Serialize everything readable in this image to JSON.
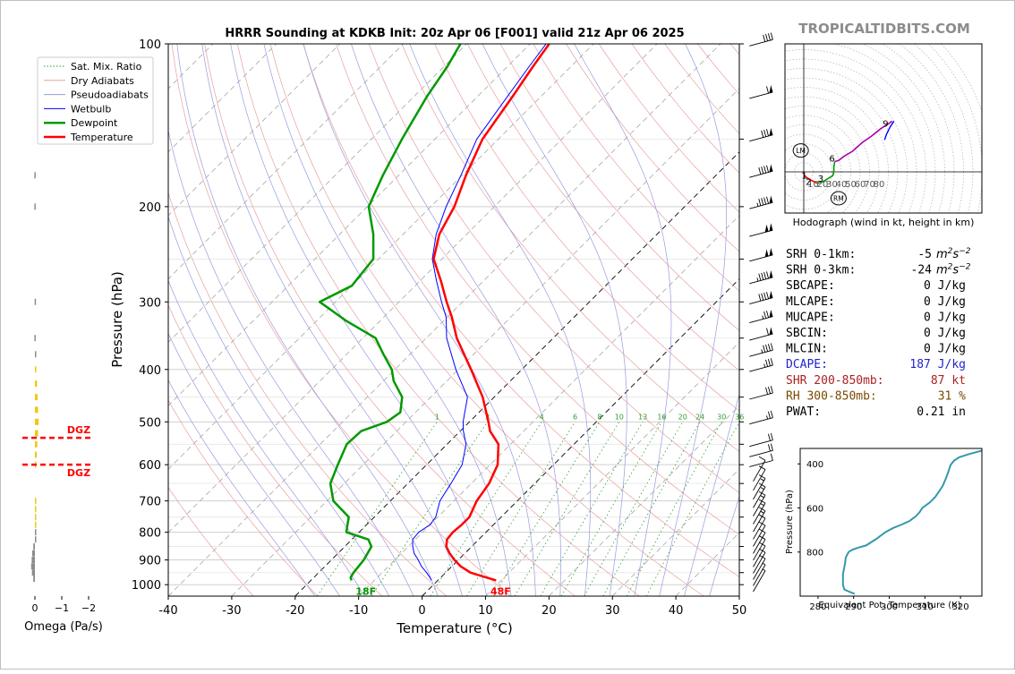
{
  "title": "HRRR Sounding at KDKB Init: 20z Apr 06 [F001] valid 21z Apr 06 2025",
  "watermark": "TROPICALTIDBITS.COM",
  "colors": {
    "temperature": "#ff0000",
    "dewpoint": "#009900",
    "wetbulb": "#0000ff",
    "dry_adiabat": "#e8a0a0",
    "pseudo_adiabat": "#9a9ae0",
    "mixing_ratio": "#2e9e2e",
    "isotherm": "#8c8c8c",
    "dgz": "#ff0000",
    "omega_pos": "#f5c518",
    "omega_neg": "#8c8c8c",
    "theta_e": "#3399aa",
    "dcape": "#2222cc",
    "shear": "#aa2222",
    "rh": "#7a4a00"
  },
  "legend": [
    {
      "label": "Sat. Mix. Ratio",
      "style": "dotted",
      "color": "#2e9e2e"
    },
    {
      "label": "Dry Adiabats",
      "style": "solid-thin",
      "color": "#e8a0a0"
    },
    {
      "label": "Pseudoadiabats",
      "style": "solid-thin",
      "color": "#9a9ae0"
    },
    {
      "label": "Wetbulb",
      "style": "solid-thin",
      "color": "#0000ff"
    },
    {
      "label": "Dewpoint",
      "style": "solid-thick",
      "color": "#009900"
    },
    {
      "label": "Temperature",
      "style": "solid-thick",
      "color": "#ff0000"
    }
  ],
  "omega": {
    "xlabel": "Omega (Pa/s)",
    "ticks": [
      "0",
      "−1",
      "−2"
    ],
    "dgz_label": "DGZ",
    "dgz_pressures": [
      535,
      600
    ]
  },
  "surface_labels": {
    "dewpoint": "18F",
    "temperature": "48F"
  },
  "mixing_ratio_labels": [
    "1",
    "2",
    "4",
    "6",
    "8",
    "10",
    "13",
    "16",
    "20",
    "24",
    "30",
    "36"
  ],
  "hodograph": {
    "caption": "Hodograph (wind in kt, height in km)",
    "ring_labels": [
      "10",
      "20",
      "30",
      "40",
      "50",
      "60",
      "70",
      "80"
    ],
    "height_labels": [
      "1",
      "2",
      "3",
      "6",
      "9"
    ],
    "lm_label": "LM",
    "rm_label": "RM"
  },
  "indices": [
    {
      "label": "SRH 0-1km:",
      "value": "-5",
      "unit": "m2s-2",
      "color": "#000000"
    },
    {
      "label": "SRH 0-3km:",
      "value": "-24",
      "unit": "m2s-2",
      "color": "#000000"
    },
    {
      "label": "SBCAPE:",
      "value": "0 J/kg",
      "color": "#000000"
    },
    {
      "label": "MLCAPE:",
      "value": "0 J/kg",
      "color": "#000000"
    },
    {
      "label": "MUCAPE:",
      "value": "0 J/kg",
      "color": "#000000"
    },
    {
      "label": "SBCIN:",
      "value": "0 J/kg",
      "color": "#000000"
    },
    {
      "label": "MLCIN:",
      "value": "0 J/kg",
      "color": "#000000"
    },
    {
      "label": "DCAPE:",
      "value": "187 J/kg",
      "color": "#2222cc"
    },
    {
      "label": "SHR 200-850mb:",
      "value": "87 kt",
      "color": "#aa2222"
    },
    {
      "label": "RH 300-850mb:",
      "value": "31 %",
      "color": "#7a4a00"
    },
    {
      "label": "PWAT:",
      "value": "0.21 in",
      "color": "#000000"
    }
  ],
  "theta_e_panel": {
    "xlabel": "Equivalent Pot. Temperature (K)",
    "ylabel": "Pressure (hPa)",
    "xlim": [
      275,
      326
    ],
    "plim": [
      1000,
      330
    ],
    "xticks": [
      280,
      290,
      300,
      310,
      320
    ],
    "yticks": [
      400,
      600,
      800
    ]
  },
  "chart_data": [
    {
      "type": "line",
      "name": "skew-t",
      "title": "HRRR Sounding at KDKB Init: 20z Apr 06 [F001] valid 21z Apr 06 2025",
      "xlabel": "Temperature (°C)",
      "ylabel": "Pressure (hPa)",
      "xlim": [
        -40,
        50
      ],
      "ylim": [
        1050,
        100
      ],
      "yscale": "log",
      "xticks": [
        -40,
        -30,
        -20,
        -10,
        0,
        10,
        20,
        30,
        40,
        50
      ],
      "yticks": [
        1000,
        900,
        800,
        700,
        600,
        500,
        400,
        300,
        200,
        100
      ],
      "grid": true,
      "legend_position": "top-left",
      "series": [
        {
          "name": "Temperature",
          "points": [
            [
              982,
              9.2
            ],
            [
              970,
              7.2
            ],
            [
              950,
              3.9
            ],
            [
              925,
              1.4
            ],
            [
              900,
              -0.6
            ],
            [
              875,
              -2.4
            ],
            [
              850,
              -4.0
            ],
            [
              825,
              -5.0
            ],
            [
              800,
              -5.2
            ],
            [
              775,
              -5.0
            ],
            [
              750,
              -5.0
            ],
            [
              700,
              -6.4
            ],
            [
              650,
              -7.2
            ],
            [
              600,
              -8.8
            ],
            [
              550,
              -11.9
            ],
            [
              520,
              -15.3
            ],
            [
              500,
              -17.0
            ],
            [
              450,
              -21.8
            ],
            [
              400,
              -28.0
            ],
            [
              350,
              -35.2
            ],
            [
              320,
              -39.3
            ],
            [
              300,
              -42.5
            ],
            [
              275,
              -46.6
            ],
            [
              250,
              -51.3
            ],
            [
              225,
              -54.3
            ],
            [
              200,
              -56.3
            ],
            [
              175,
              -59.4
            ],
            [
              150,
              -62.5
            ],
            [
              125,
              -64.5
            ],
            [
              110,
              -66.0
            ],
            [
              100,
              -67.0
            ]
          ]
        },
        {
          "name": "Dewpoint",
          "points": [
            [
              982,
              -13.6
            ],
            [
              970,
              -14.2
            ],
            [
              950,
              -14.5
            ],
            [
              900,
              -14.9
            ],
            [
              850,
              -15.8
            ],
            [
              825,
              -17.4
            ],
            [
              800,
              -22.0
            ],
            [
              775,
              -23.0
            ],
            [
              750,
              -24.0
            ],
            [
              700,
              -29.0
            ],
            [
              650,
              -32.2
            ],
            [
              600,
              -34.0
            ],
            [
              550,
              -35.8
            ],
            [
              520,
              -35.6
            ],
            [
              500,
              -33.0
            ],
            [
              480,
              -32.4
            ],
            [
              450,
              -34.5
            ],
            [
              420,
              -38.4
            ],
            [
              400,
              -40.5
            ],
            [
              375,
              -44.2
            ],
            [
              350,
              -48.0
            ],
            [
              325,
              -55.4
            ],
            [
              300,
              -62.5
            ],
            [
              280,
              -60.0
            ],
            [
              250,
              -60.8
            ],
            [
              225,
              -64.7
            ],
            [
              200,
              -69.8
            ],
            [
              175,
              -72.5
            ],
            [
              150,
              -75.2
            ],
            [
              125,
              -78.0
            ],
            [
              110,
              -79.5
            ],
            [
              100,
              -81.0
            ]
          ]
        },
        {
          "name": "Wetbulb",
          "points": [
            [
              982,
              -1.0
            ],
            [
              970,
              -1.7
            ],
            [
              950,
              -3.0
            ],
            [
              925,
              -4.8
            ],
            [
              900,
              -6.3
            ],
            [
              875,
              -8.0
            ],
            [
              850,
              -9.3
            ],
            [
              825,
              -10.4
            ],
            [
              800,
              -10.6
            ],
            [
              775,
              -10.0
            ],
            [
              750,
              -10.3
            ],
            [
              700,
              -12.2
            ],
            [
              650,
              -13.2
            ],
            [
              600,
              -14.4
            ],
            [
              550,
              -17.0
            ],
            [
              520,
              -19.5
            ],
            [
              500,
              -21.0
            ],
            [
              450,
              -24.2
            ],
            [
              400,
              -30.4
            ],
            [
              350,
              -36.8
            ],
            [
              320,
              -40.2
            ],
            [
              300,
              -43.3
            ],
            [
              275,
              -47.3
            ],
            [
              250,
              -51.5
            ],
            [
              225,
              -54.8
            ],
            [
              200,
              -57.6
            ],
            [
              175,
              -60.2
            ],
            [
              150,
              -63.4
            ],
            [
              125,
              -65.3
            ],
            [
              110,
              -66.6
            ],
            [
              100,
              -67.5
            ]
          ]
        }
      ],
      "wind_barbs": [
        {
          "p": 1000,
          "speed_kt": 5
        },
        {
          "p": 975,
          "speed_kt": 5
        },
        {
          "p": 950,
          "speed_kt": 10
        },
        {
          "p": 925,
          "speed_kt": 10
        },
        {
          "p": 900,
          "speed_kt": 10
        },
        {
          "p": 875,
          "speed_kt": 10
        },
        {
          "p": 850,
          "speed_kt": 10
        },
        {
          "p": 825,
          "speed_kt": 10
        },
        {
          "p": 800,
          "speed_kt": 10
        },
        {
          "p": 775,
          "speed_kt": 15
        },
        {
          "p": 750,
          "speed_kt": 15
        },
        {
          "p": 725,
          "speed_kt": 15
        },
        {
          "p": 700,
          "speed_kt": 15
        },
        {
          "p": 675,
          "speed_kt": 15
        },
        {
          "p": 650,
          "speed_kt": 10
        },
        {
          "p": 625,
          "speed_kt": 10
        },
        {
          "p": 600,
          "speed_kt": 10
        },
        {
          "p": 575,
          "speed_kt": 20
        },
        {
          "p": 550,
          "speed_kt": 20
        },
        {
          "p": 500,
          "speed_kt": 25
        },
        {
          "p": 450,
          "speed_kt": 30
        },
        {
          "p": 400,
          "speed_kt": 35
        },
        {
          "p": 375,
          "speed_kt": 45
        },
        {
          "p": 350,
          "speed_kt": 60
        },
        {
          "p": 325,
          "speed_kt": 75
        },
        {
          "p": 300,
          "speed_kt": 90
        },
        {
          "p": 275,
          "speed_kt": 95
        },
        {
          "p": 250,
          "speed_kt": 100
        },
        {
          "p": 225,
          "speed_kt": 100
        },
        {
          "p": 200,
          "speed_kt": 95
        },
        {
          "p": 175,
          "speed_kt": 90
        },
        {
          "p": 150,
          "speed_kt": 80
        },
        {
          "p": 125,
          "speed_kt": 60
        },
        {
          "p": 100,
          "speed_kt": 40
        }
      ]
    },
    {
      "type": "bar",
      "name": "omega",
      "xlabel": "Omega (Pa/s)",
      "xlim": [
        0.2,
        -2.2
      ],
      "orientation": "horizontal",
      "points": [
        [
          975,
          0.06
        ],
        [
          950,
          0.11
        ],
        [
          925,
          0.14
        ],
        [
          900,
          0.12
        ],
        [
          875,
          0.1
        ],
        [
          850,
          0.06
        ],
        [
          825,
          0.0
        ],
        [
          800,
          0.0
        ],
        [
          775,
          -0.03
        ],
        [
          750,
          -0.05
        ],
        [
          725,
          -0.04
        ],
        [
          700,
          -0.03
        ],
        [
          600,
          -0.05
        ],
        [
          575,
          -0.07
        ],
        [
          550,
          -0.09
        ],
        [
          525,
          -0.12
        ],
        [
          500,
          -0.14
        ],
        [
          475,
          -0.12
        ],
        [
          450,
          -0.1
        ],
        [
          425,
          -0.08
        ],
        [
          400,
          -0.02
        ],
        [
          375,
          0.0
        ],
        [
          350,
          0.02
        ],
        [
          300,
          0.01
        ],
        [
          200,
          0.02
        ],
        [
          175,
          0.02
        ]
      ]
    },
    {
      "type": "line",
      "name": "hodograph",
      "xlabel": "u (kt)",
      "ylabel": "v (kt)",
      "series": [
        {
          "points": [
            [
              -0.5,
              -0.5
            ],
            [
              1,
              -4
            ],
            [
              3,
              -6
            ],
            [
              8,
              -9
            ],
            [
              14,
              -12
            ],
            [
              19,
              -11
            ],
            [
              23,
              -9
            ],
            [
              26,
              -7
            ],
            [
              31,
              -4
            ],
            [
              32,
              0
            ],
            [
              32,
              5
            ],
            [
              33,
              11
            ],
            [
              37,
              12
            ],
            [
              42,
              16
            ],
            [
              52,
              22
            ],
            [
              62,
              31
            ],
            [
              72,
              38
            ],
            [
              82,
              46
            ],
            [
              90,
              51
            ],
            [
              94,
              54
            ]
          ]
        },
        {
          "points": [
            [
              96,
              54
            ],
            [
              92,
              48
            ],
            [
              88,
              40
            ],
            [
              86,
              34
            ]
          ]
        }
      ],
      "storm_motion": {
        "LM": [
          -7,
          17
        ],
        "RM": [
          18,
          -10
        ]
      }
    },
    {
      "type": "line",
      "name": "theta-e",
      "xlabel": "Equivalent Pot. Temperature (K)",
      "ylabel": "Pressure (hPa)",
      "series": [
        {
          "points": [
            [
              290.3,
              990
            ],
            [
              288.8,
              980
            ],
            [
              287.4,
              970
            ],
            [
              287.0,
              950
            ],
            [
              287.0,
              900
            ],
            [
              287.6,
              850
            ],
            [
              287.8,
              825
            ],
            [
              288.6,
              800
            ],
            [
              289.6,
              790
            ],
            [
              291.3,
              780
            ],
            [
              293.5,
              770
            ],
            [
              296.4,
              740
            ],
            [
              298.9,
              710
            ],
            [
              301.2,
              690
            ],
            [
              303.5,
              675
            ],
            [
              305.6,
              660
            ],
            [
              307.3,
              640
            ],
            [
              308.5,
              620
            ],
            [
              309.3,
              600
            ],
            [
              311.4,
              575
            ],
            [
              312.9,
              550
            ],
            [
              314.0,
              525
            ],
            [
              315.0,
              500
            ],
            [
              315.8,
              470
            ],
            [
              316.5,
              440
            ],
            [
              317.2,
              405
            ],
            [
              318.2,
              385
            ],
            [
              319.6,
              370
            ],
            [
              322.5,
              355
            ],
            [
              326.0,
              340
            ]
          ]
        }
      ]
    }
  ]
}
